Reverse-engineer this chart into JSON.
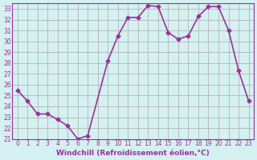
{
  "x": [
    0,
    1,
    2,
    3,
    4,
    5,
    6,
    7,
    9,
    10,
    11,
    12,
    13,
    14,
    15,
    16,
    17,
    18,
    19,
    20,
    21,
    22,
    23
  ],
  "y": [
    25.5,
    24.5,
    23.3,
    23.3,
    22.8,
    22.2,
    21.0,
    21.3,
    28.2,
    30.5,
    32.2,
    32.2,
    33.3,
    33.2,
    30.8,
    30.2,
    30.5,
    32.3,
    33.2,
    33.2,
    31.0,
    27.3,
    24.5
  ],
  "ylim": [
    21,
    33
  ],
  "yticks": [
    21,
    22,
    23,
    24,
    25,
    26,
    27,
    28,
    29,
    30,
    31,
    32,
    33
  ],
  "xticks": [
    0,
    1,
    2,
    3,
    4,
    5,
    6,
    7,
    8,
    9,
    10,
    11,
    12,
    13,
    14,
    15,
    16,
    17,
    18,
    19,
    20,
    21,
    22,
    23
  ],
  "line_color": "#993399",
  "marker": "D",
  "marker_size": 2.5,
  "bg_color": "#d4f0f0",
  "grid_color": "#aaaaaa",
  "xlabel": "Windchill (Refroidissement éolien,°C)",
  "xlabel_color": "#993399",
  "tick_color": "#993399",
  "linewidth": 1.2
}
